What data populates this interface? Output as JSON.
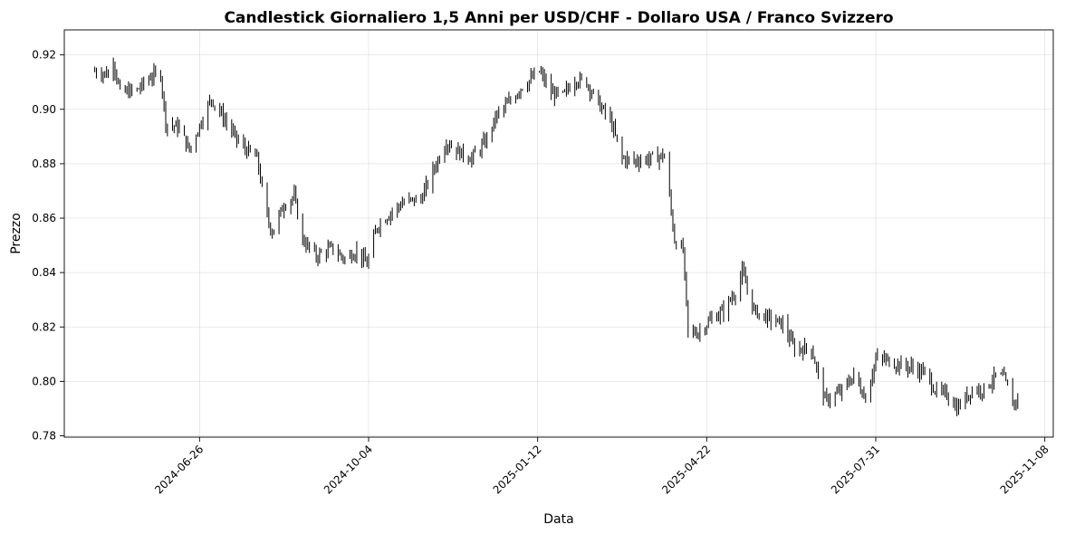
{
  "chart_data": {
    "type": "candlestick",
    "title": "Candlestick Giornaliero 1,5 Anni per USD/CHF - Dollaro USA / Franco Svizzero",
    "xlabel": "Data",
    "ylabel": "Prezzo",
    "xlim": [
      "2024-04-07",
      "2025-11-13"
    ],
    "ylim": [
      0.7795,
      0.9292
    ],
    "grid": true,
    "x_ticks": [
      "2024-06-26",
      "2024-10-04",
      "2025-01-12",
      "2025-04-22",
      "2025-07-31",
      "2025-11-08"
    ],
    "y_ticks": [
      0.78,
      0.8,
      0.82,
      0.84,
      0.86,
      0.88,
      0.9,
      0.92
    ],
    "y_tick_labels": [
      "0.78",
      "0.80",
      "0.82",
      "0.84",
      "0.86",
      "0.88",
      "0.90",
      "0.92"
    ],
    "approx_close_path": [
      [
        "2024-04-25",
        0.914
      ],
      [
        "2024-05-03",
        0.913
      ],
      [
        "2024-05-06",
        0.918
      ],
      [
        "2024-05-10",
        0.906
      ],
      [
        "2024-05-20",
        0.907
      ],
      [
        "2024-05-28",
        0.912
      ],
      [
        "2024-06-03",
        0.913
      ],
      [
        "2024-06-06",
        0.895
      ],
      [
        "2024-06-14",
        0.893
      ],
      [
        "2024-06-20",
        0.885
      ],
      [
        "2024-06-28",
        0.897
      ],
      [
        "2024-07-03",
        0.904
      ],
      [
        "2024-07-10",
        0.897
      ],
      [
        "2024-07-18",
        0.889
      ],
      [
        "2024-07-22",
        0.886
      ],
      [
        "2024-07-30",
        0.882
      ],
      [
        "2024-08-05",
        0.86
      ],
      [
        "2024-08-08",
        0.855
      ],
      [
        "2024-08-15",
        0.865
      ],
      [
        "2024-08-21",
        0.868
      ],
      [
        "2024-08-26",
        0.852
      ],
      [
        "2024-09-03",
        0.846
      ],
      [
        "2024-09-12",
        0.849
      ],
      [
        "2024-09-20",
        0.845
      ],
      [
        "2024-09-27",
        0.848
      ],
      [
        "2024-10-03",
        0.843
      ],
      [
        "2024-10-09",
        0.857
      ],
      [
        "2024-10-17",
        0.862
      ],
      [
        "2024-10-25",
        0.866
      ],
      [
        "2024-11-04",
        0.867
      ],
      [
        "2024-11-13",
        0.88
      ],
      [
        "2024-11-19",
        0.888
      ],
      [
        "2024-11-27",
        0.884
      ],
      [
        "2024-12-04",
        0.882
      ],
      [
        "2024-12-12",
        0.888
      ],
      [
        "2024-12-19",
        0.898
      ],
      [
        "2024-12-27",
        0.903
      ],
      [
        "2025-01-02",
        0.908
      ],
      [
        "2025-01-08",
        0.911
      ],
      [
        "2025-01-13",
        0.914
      ],
      [
        "2025-01-20",
        0.906
      ],
      [
        "2025-01-27",
        0.905
      ],
      [
        "2025-02-03",
        0.911
      ],
      [
        "2025-02-10",
        0.91
      ],
      [
        "2025-02-17",
        0.902
      ],
      [
        "2025-02-24",
        0.896
      ],
      [
        "2025-03-03",
        0.882
      ],
      [
        "2025-03-10",
        0.881
      ],
      [
        "2025-03-20",
        0.882
      ],
      [
        "2025-03-28",
        0.883
      ],
      [
        "2025-04-03",
        0.852
      ],
      [
        "2025-04-08",
        0.848
      ],
      [
        "2025-04-11",
        0.818
      ],
      [
        "2025-04-17",
        0.818
      ],
      [
        "2025-04-25",
        0.823
      ],
      [
        "2025-05-02",
        0.826
      ],
      [
        "2025-05-09",
        0.833
      ],
      [
        "2025-05-13",
        0.84
      ],
      [
        "2025-05-20",
        0.826
      ],
      [
        "2025-05-29",
        0.823
      ],
      [
        "2025-06-06",
        0.821
      ],
      [
        "2025-06-13",
        0.812
      ],
      [
        "2025-06-23",
        0.812
      ],
      [
        "2025-07-01",
        0.793
      ],
      [
        "2025-07-10",
        0.796
      ],
      [
        "2025-07-18",
        0.802
      ],
      [
        "2025-07-25",
        0.794
      ],
      [
        "2025-07-31",
        0.808
      ],
      [
        "2025-08-06",
        0.808
      ],
      [
        "2025-08-14",
        0.806
      ],
      [
        "2025-08-22",
        0.805
      ],
      [
        "2025-08-29",
        0.803
      ],
      [
        "2025-09-05",
        0.796
      ],
      [
        "2025-09-12",
        0.795
      ],
      [
        "2025-09-17",
        0.79
      ],
      [
        "2025-09-26",
        0.797
      ],
      [
        "2025-10-03",
        0.797
      ],
      [
        "2025-10-10",
        0.802
      ],
      [
        "2025-10-15",
        0.801
      ],
      [
        "2025-10-20",
        0.792
      ],
      [
        "2025-10-24",
        0.794
      ]
    ]
  }
}
